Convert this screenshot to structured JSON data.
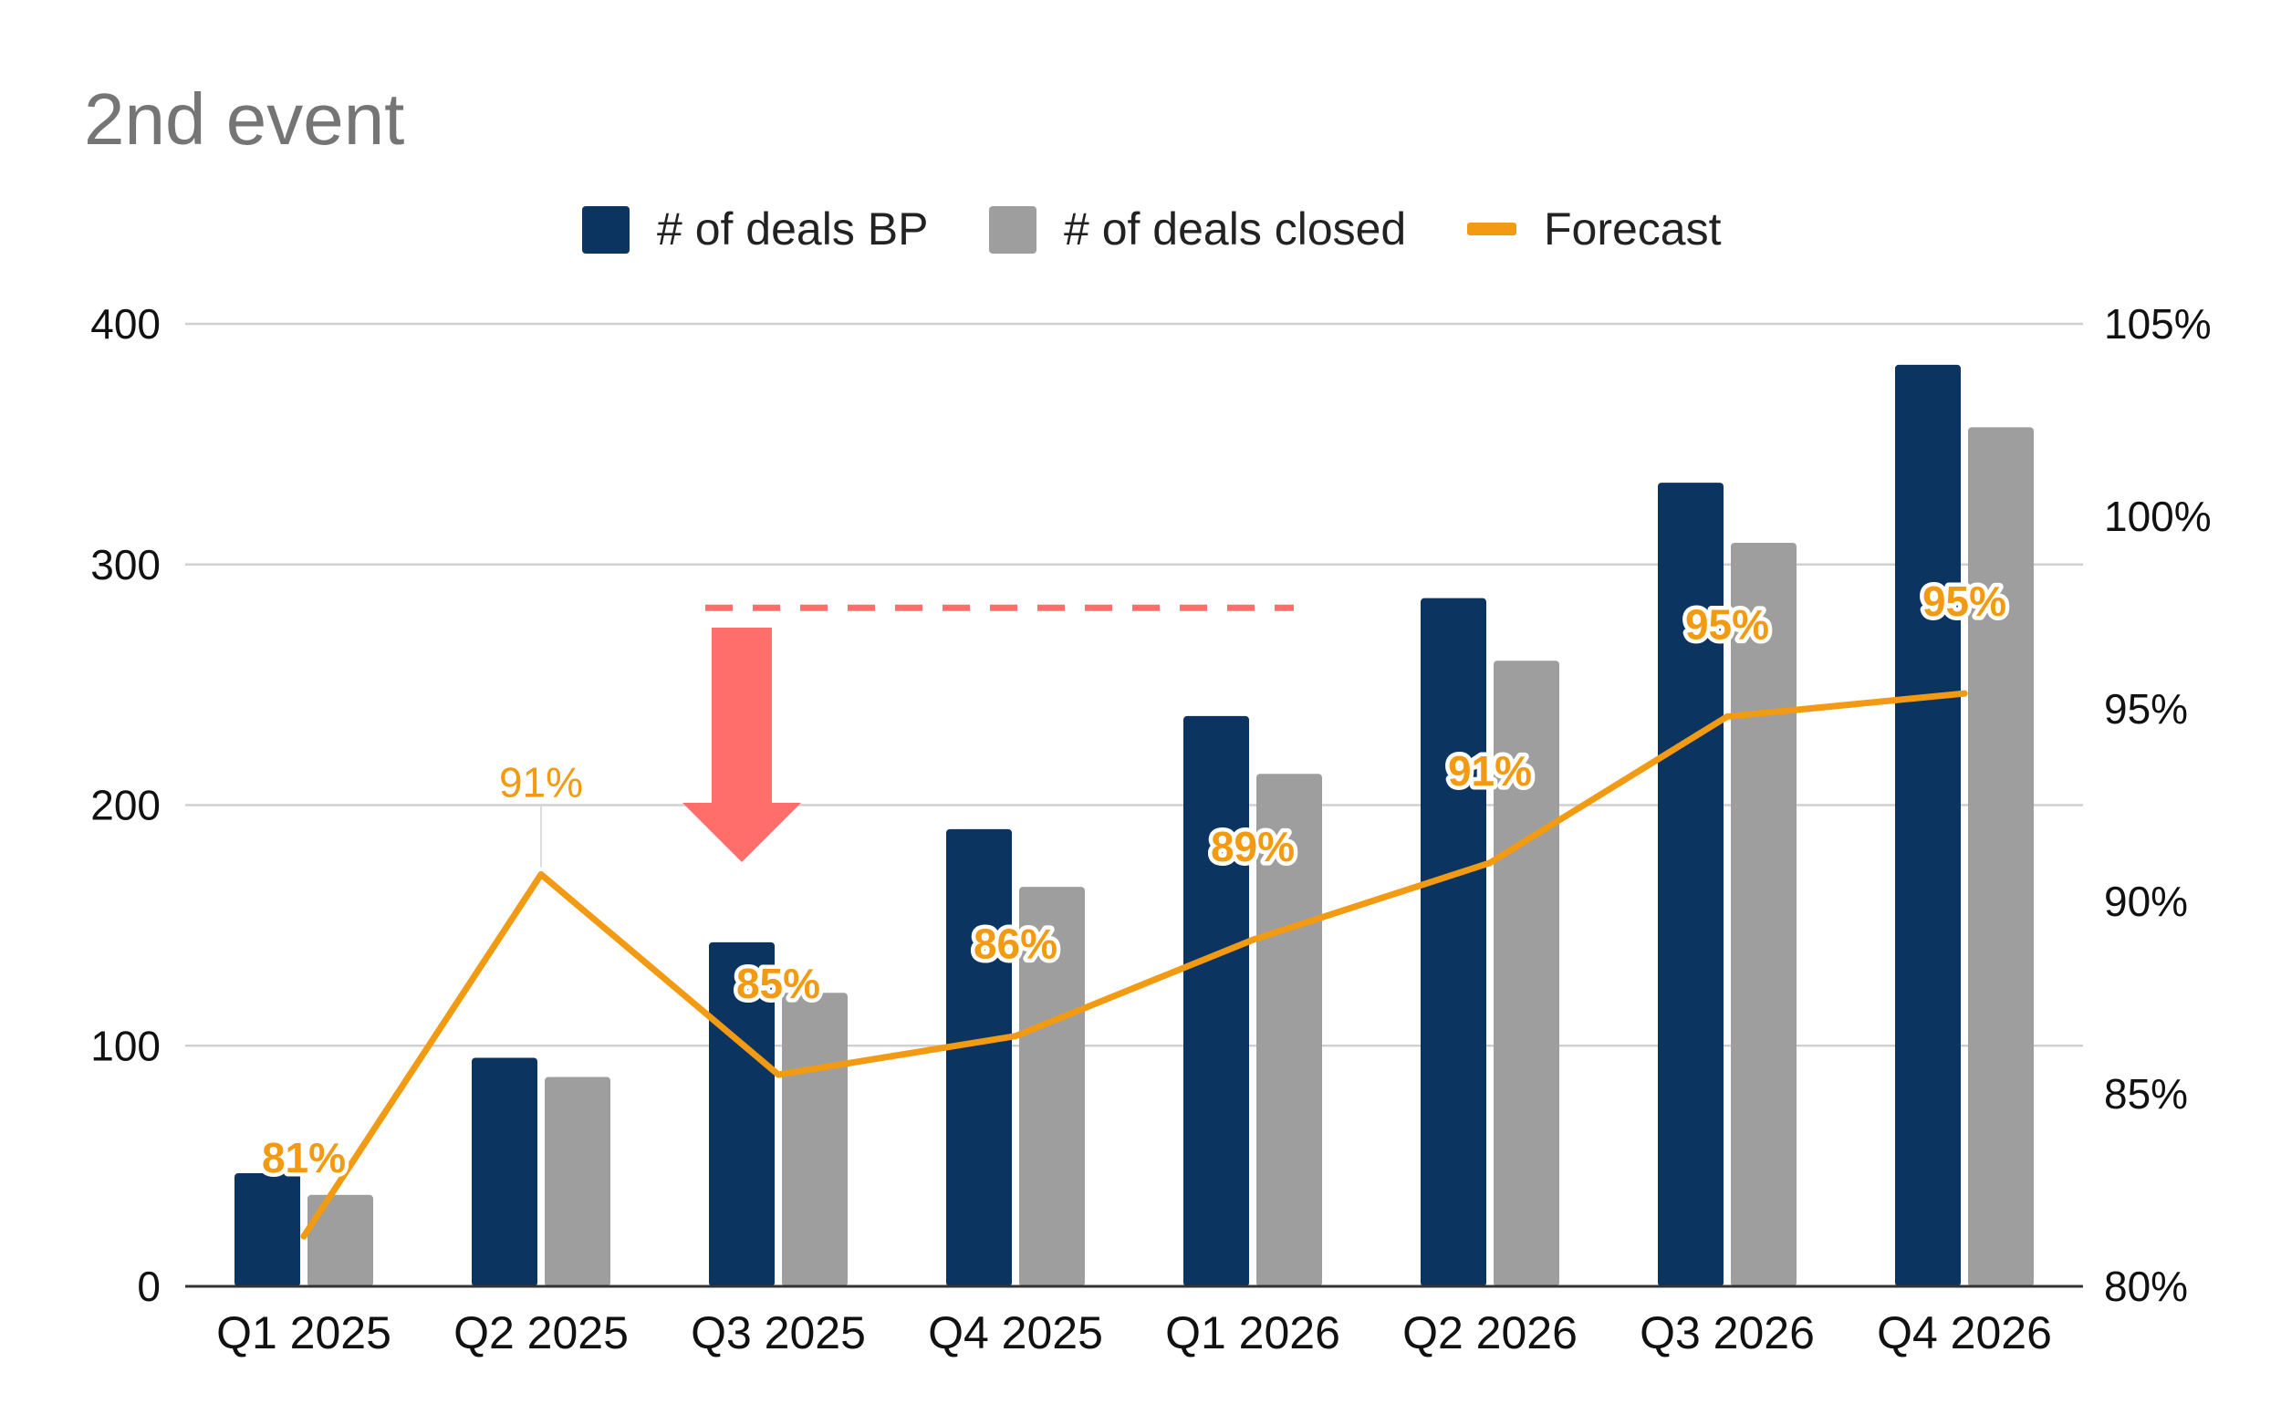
{
  "chart_data": {
    "type": "bar",
    "title": "2nd event",
    "categories": [
      "Q1 2025",
      "Q2 2025",
      "Q3 2025",
      "Q4 2025",
      "Q1 2026",
      "Q2 2026",
      "Q3 2026",
      "Q4 2026"
    ],
    "series": [
      {
        "name": "# of deals BP",
        "type": "bar",
        "axis": "left",
        "color": "#0b3461",
        "values": [
          47,
          95,
          143,
          190,
          237,
          286,
          334,
          383
        ]
      },
      {
        "name": "# of deals closed",
        "type": "bar",
        "axis": "left",
        "color": "#9e9e9e",
        "values": [
          38,
          87,
          122,
          166,
          213,
          260,
          309,
          357
        ]
      },
      {
        "name": "Forecast",
        "type": "line",
        "axis": "right",
        "color": "#f29a12",
        "values": [
          81.3,
          90.7,
          85.5,
          86.5,
          89.0,
          91.0,
          94.8,
          95.4
        ],
        "labels": [
          "81%",
          "91%",
          "85%",
          "86%",
          "89%",
          "91%",
          "95%",
          "95%"
        ]
      }
    ],
    "y_left": {
      "ylim": [
        0,
        400
      ],
      "ticks": [
        "0",
        "100",
        "200",
        "300",
        "400"
      ]
    },
    "y_right": {
      "ylim": [
        80,
        105
      ],
      "ticks": [
        "80%",
        "85%",
        "90%",
        "95%",
        "100%",
        "105%"
      ]
    },
    "legend_position": "top-center",
    "grid": true,
    "annotations": {
      "down_arrow": {
        "category": "Q3 2025",
        "color": "#ff6e6b"
      },
      "dashed_line": {
        "from_category": "Q3 2025",
        "to_category": "Q1 2026",
        "value": 282,
        "color": "#ff6e6b"
      }
    }
  }
}
